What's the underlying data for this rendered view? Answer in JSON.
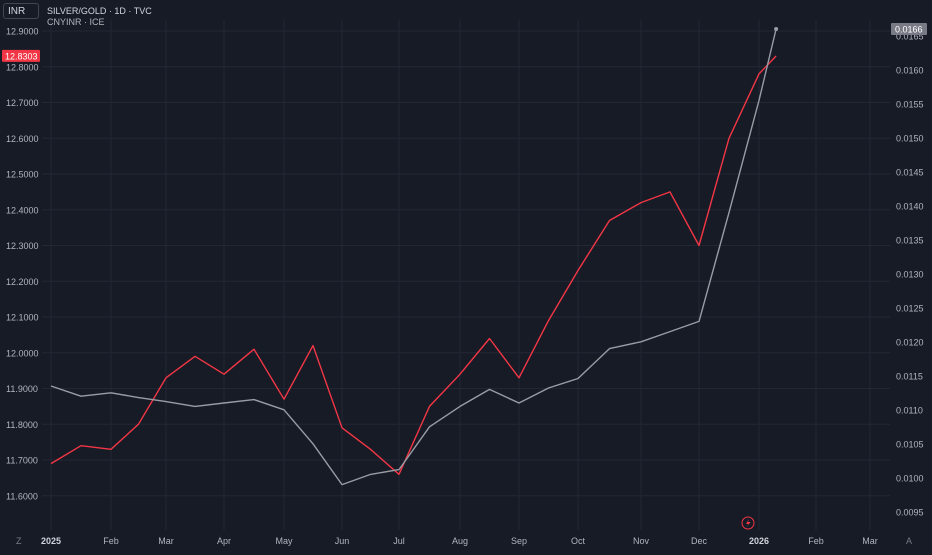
{
  "toolbar": {
    "symbol_input_value": "INR",
    "main_series_label": "SILVER/GOLD · 1D · TVC",
    "overlay_series_label": "CNYINR · ICE",
    "zoom_icon": "zoom-z-icon",
    "auto_scale_icon": "auto-scale-a-icon",
    "jump_icon": "lightning-icon"
  },
  "colors": {
    "background": "#171b26",
    "grid": "#232734",
    "text": "#b2b5be",
    "red_series": "#f23645",
    "gray_series": "#9a9ca5",
    "red_badge": "#f23645",
    "gray_badge": "#787b86"
  },
  "chart_data": {
    "type": "line",
    "x_ticks": [
      "2025",
      "Feb",
      "Mar",
      "Apr",
      "May",
      "Jun",
      "Jul",
      "Aug",
      "Sep",
      "Oct",
      "Nov",
      "Dec",
      "2026",
      "Feb",
      "Mar"
    ],
    "left_axis": {
      "ticks": [
        "12.9000",
        "12.8000",
        "12.7000",
        "12.6000",
        "12.5000",
        "12.4000",
        "12.3000",
        "12.2000",
        "12.1000",
        "12.0000",
        "11.9000",
        "11.8000",
        "11.7000",
        "11.6000"
      ],
      "ylim": [
        11.55,
        12.95
      ],
      "last_value_badge": "12.8303"
    },
    "right_axis": {
      "ticks": [
        "0.0165",
        "0.0160",
        "0.0155",
        "0.0150",
        "0.0145",
        "0.0140",
        "0.0135",
        "0.0130",
        "0.0125",
        "0.0120",
        "0.0115",
        "0.0110",
        "0.0105",
        "0.0100",
        "0.0095"
      ],
      "ylim": [
        0.0092,
        0.01672
      ],
      "last_value_badge": "0.0166"
    },
    "series": [
      {
        "name": "CNYINR",
        "axis": "left",
        "color": "#f23645",
        "x": [
          0.0,
          0.5,
          1.0,
          1.5,
          2.0,
          2.5,
          3.0,
          3.5,
          4.0,
          4.5,
          5.0,
          5.5,
          6.0,
          6.5,
          7.0,
          7.5,
          8.0,
          8.5,
          9.0,
          9.5,
          10.0,
          10.5,
          11.0,
          11.5,
          12.0,
          12.3
        ],
        "values": [
          11.69,
          11.74,
          11.73,
          11.8,
          11.93,
          11.99,
          11.94,
          12.01,
          11.87,
          12.02,
          11.79,
          11.73,
          11.66,
          11.85,
          11.94,
          12.04,
          11.93,
          12.09,
          12.23,
          12.37,
          12.42,
          12.45,
          12.3,
          12.6,
          12.78,
          12.83
        ]
      },
      {
        "name": "SILVER/GOLD",
        "axis": "right",
        "color": "#9a9ca5",
        "x": [
          0.0,
          0.5,
          1.0,
          1.5,
          2.0,
          2.5,
          3.0,
          3.5,
          4.0,
          4.5,
          5.0,
          5.5,
          6.0,
          6.5,
          7.0,
          7.5,
          8.0,
          8.5,
          9.0,
          9.5,
          10.0,
          10.5,
          11.0,
          11.5,
          12.0,
          12.3
        ],
        "values": [
          0.01135,
          0.0112,
          0.01125,
          0.01118,
          0.01112,
          0.01105,
          0.0111,
          0.01115,
          0.011,
          0.0105,
          0.0099,
          0.01005,
          0.01012,
          0.01075,
          0.01105,
          0.0113,
          0.0111,
          0.01132,
          0.01146,
          0.0119,
          0.012,
          0.01215,
          0.0123,
          0.0139,
          0.01555,
          0.0166
        ]
      }
    ],
    "grid": true,
    "legend": "top-left"
  }
}
